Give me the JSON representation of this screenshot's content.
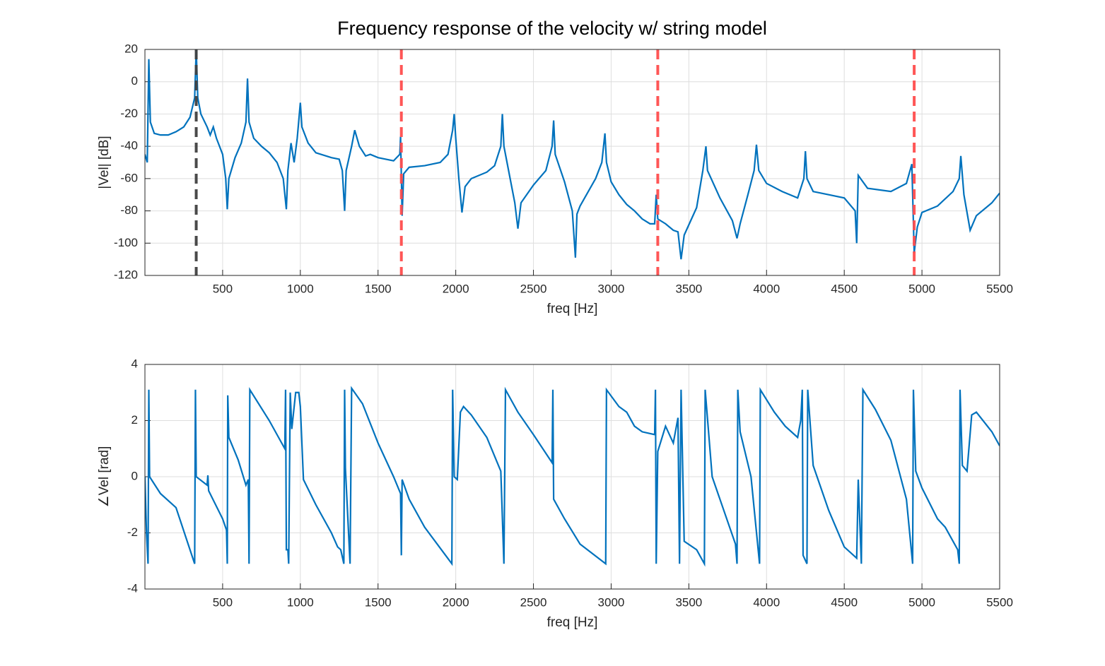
{
  "chart_data": [
    {
      "type": "line",
      "title": "Frequency response of the velocity w/ string model",
      "xlabel": "freq [Hz]",
      "ylabel": "|Vel| [dB]",
      "xlim": [
        0,
        5500
      ],
      "xticks": [
        500,
        1000,
        1500,
        2000,
        2500,
        3000,
        3500,
        4000,
        4500,
        5000,
        5500
      ],
      "ylim": [
        -120,
        20
      ],
      "yticks": [
        -120,
        -100,
        -80,
        -60,
        -40,
        -20,
        0,
        20
      ],
      "grid": true,
      "color": "#0072bd",
      "vlines": [
        {
          "x": 330,
          "color": "#404040"
        },
        {
          "x": 1650,
          "color": "#ff4d4d"
        },
        {
          "x": 3300,
          "color": "#ff4d4d"
        },
        {
          "x": 4950,
          "color": "#ff4d4d"
        }
      ],
      "x": [
        0,
        15,
        25,
        35,
        60,
        100,
        150,
        200,
        250,
        290,
        320,
        330,
        340,
        360,
        400,
        420,
        440,
        460,
        500,
        520,
        530,
        540,
        580,
        620,
        650,
        660,
        670,
        700,
        750,
        800,
        850,
        890,
        910,
        920,
        940,
        960,
        980,
        1000,
        1010,
        1050,
        1100,
        1200,
        1250,
        1270,
        1285,
        1295,
        1330,
        1350,
        1380,
        1420,
        1450,
        1500,
        1600,
        1640,
        1645,
        1655,
        1665,
        1700,
        1800,
        1900,
        1950,
        1980,
        1990,
        2000,
        2020,
        2040,
        2060,
        2100,
        2200,
        2250,
        2290,
        2300,
        2310,
        2350,
        2380,
        2400,
        2420,
        2500,
        2580,
        2620,
        2630,
        2640,
        2700,
        2750,
        2770,
        2780,
        2800,
        2900,
        2940,
        2960,
        2970,
        3000,
        3050,
        3100,
        3150,
        3200,
        3250,
        3280,
        3290,
        3300,
        3350,
        3400,
        3430,
        3450,
        3470,
        3550,
        3590,
        3610,
        3620,
        3700,
        3780,
        3810,
        3830,
        3880,
        3920,
        3935,
        3950,
        4000,
        4100,
        4200,
        4240,
        4250,
        4260,
        4300,
        4400,
        4500,
        4570,
        4580,
        4590,
        4650,
        4800,
        4900,
        4935,
        4950,
        4970,
        5000,
        5100,
        5200,
        5240,
        5250,
        5270,
        5310,
        5350,
        5450,
        5500
      ],
      "values": [
        -45,
        -50,
        14,
        -25,
        -32,
        -33,
        -33,
        -31,
        -28,
        -22,
        -10,
        20,
        -10,
        -20,
        -28,
        -33,
        -28,
        -35,
        -45,
        -60,
        -79,
        -60,
        -47,
        -38,
        -25,
        2,
        -25,
        -35,
        -40,
        -44,
        -50,
        -60,
        -79,
        -55,
        -38,
        -50,
        -35,
        -13,
        -28,
        -38,
        -44,
        -47,
        -48,
        -55,
        -80,
        -55,
        -40,
        -30,
        -40,
        -46,
        -45,
        -47,
        -49,
        -45,
        -34,
        -83,
        -57,
        -53,
        -52,
        -50,
        -45,
        -30,
        -20,
        -35,
        -60,
        -81,
        -65,
        -60,
        -56,
        -52,
        -40,
        -20,
        -40,
        -60,
        -75,
        -91,
        -75,
        -64,
        -55,
        -40,
        -24,
        -45,
        -62,
        -80,
        -109,
        -82,
        -77,
        -60,
        -50,
        -32,
        -50,
        -62,
        -70,
        -76,
        -80,
        -85,
        -88,
        -88,
        -70,
        -85,
        -88,
        -92,
        -93,
        -110,
        -95,
        -78,
        -55,
        -40,
        -55,
        -72,
        -86,
        -97,
        -88,
        -70,
        -55,
        -39,
        -55,
        -63,
        -68,
        -72,
        -60,
        -43,
        -60,
        -68,
        -70,
        -72,
        -80,
        -100,
        -58,
        -66,
        -68,
        -63,
        -51,
        -106,
        -90,
        -81,
        -77,
        -68,
        -60,
        -46,
        -70,
        -92,
        -83,
        -75,
        -69
      ]
    },
    {
      "type": "line",
      "xlabel": "freq [Hz]",
      "ylabel": "∠Vel [rad]",
      "xlim": [
        0,
        5500
      ],
      "xticks": [
        500,
        1000,
        1500,
        2000,
        2500,
        3000,
        3500,
        4000,
        4500,
        5000,
        5500
      ],
      "ylim": [
        -4,
        4
      ],
      "yticks": [
        -4,
        -2,
        0,
        2,
        4
      ],
      "grid": true,
      "color": "#0072bd",
      "x": [
        0,
        10,
        20,
        25,
        30,
        100,
        200,
        320,
        325,
        330,
        400,
        405,
        410,
        500,
        525,
        530,
        533,
        540,
        600,
        650,
        665,
        670,
        675,
        800,
        900,
        905,
        910,
        920,
        925,
        935,
        945,
        970,
        990,
        1000,
        1020,
        1100,
        1200,
        1240,
        1260,
        1280,
        1285,
        1290,
        1320,
        1330,
        1400,
        1500,
        1600,
        1645,
        1650,
        1655,
        1700,
        1800,
        1975,
        1980,
        1990,
        2010,
        2030,
        2050,
        2100,
        2200,
        2290,
        2310,
        2320,
        2400,
        2500,
        2620,
        2625,
        2630,
        2700,
        2800,
        2965,
        2970,
        3050,
        3100,
        3150,
        3200,
        3280,
        3285,
        3290,
        3300,
        3350,
        3400,
        3430,
        3440,
        3450,
        3470,
        3550,
        3600,
        3605,
        3650,
        3700,
        3800,
        3810,
        3815,
        3830,
        3900,
        3955,
        3960,
        4050,
        4120,
        4200,
        4220,
        4230,
        4235,
        4260,
        4265,
        4300,
        4400,
        4500,
        4580,
        4590,
        4610,
        4620,
        4700,
        4800,
        4900,
        4940,
        4945,
        4960,
        5000,
        5100,
        5150,
        5230,
        5240,
        5245,
        5260,
        5290,
        5320,
        5350,
        5450,
        5500
      ],
      "values": [
        0,
        -2,
        -3.1,
        3.1,
        0,
        -0.6,
        -1.1,
        -3.1,
        3.1,
        0,
        -0.3,
        0.05,
        -0.5,
        -1.5,
        -1.9,
        -3.1,
        2.9,
        1.4,
        0.6,
        -0.3,
        -0.1,
        -3.1,
        3.1,
        2.0,
        1.0,
        3.1,
        -2.6,
        -2.6,
        -3.1,
        3.0,
        1.7,
        3.0,
        3.0,
        2.5,
        -0.1,
        -1.0,
        -2.0,
        -2.5,
        -2.6,
        -3.1,
        3.1,
        0.3,
        -3.1,
        3.15,
        2.6,
        1.2,
        0,
        -0.6,
        -2.8,
        -0.1,
        -0.8,
        -1.8,
        -3.1,
        3.1,
        0,
        -0.1,
        2.3,
        2.5,
        2.2,
        1.4,
        0.2,
        -3.1,
        3.1,
        2.3,
        1.5,
        0.5,
        3.1,
        -0.8,
        -1.5,
        -2.4,
        -3.1,
        3.1,
        2.5,
        2.3,
        1.8,
        1.6,
        1.5,
        3.1,
        -3.1,
        0.9,
        1.8,
        1.2,
        2.1,
        -3.1,
        3.1,
        -2.3,
        -2.6,
        -3.1,
        3.1,
        0,
        -0.8,
        -2.4,
        -3.1,
        3.1,
        1.6,
        0.0,
        -3.1,
        3.1,
        2.3,
        1.8,
        1.4,
        2.0,
        3.1,
        -2.8,
        -3.1,
        3.1,
        0.4,
        -1.2,
        -2.5,
        -2.9,
        -0.1,
        -3.1,
        3.1,
        2.4,
        1.3,
        -0.8,
        -3.1,
        3.1,
        0.2,
        -0.4,
        -1.5,
        -1.8,
        -2.6,
        -3.1,
        3.1,
        0.4,
        0.2,
        2.2,
        2.3,
        1.6,
        1.1
      ]
    }
  ]
}
